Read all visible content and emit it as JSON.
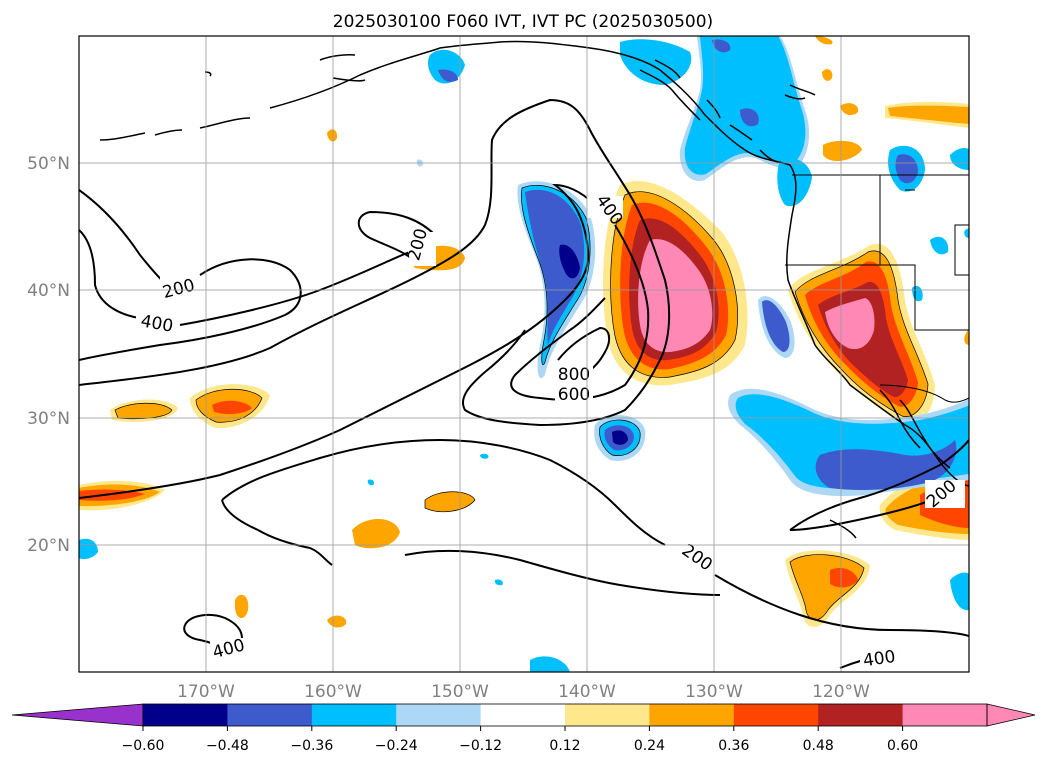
{
  "title": "2025030100 F060 IVT, IVT PC (2025030500)",
  "map": {
    "extent": {
      "lon_min": -180,
      "lon_max": -110,
      "lat_min": 10,
      "lat_max": 60
    },
    "lat_labels": [
      "50°N",
      "40°N",
      "30°N",
      "20°N"
    ],
    "lon_labels": [
      "170°W",
      "160°W",
      "150°W",
      "140°W",
      "130°W",
      "120°W"
    ],
    "gridlines": true,
    "contour_labels": [
      "400",
      "200",
      "200",
      "400",
      "800",
      "600",
      "200",
      "400",
      "200",
      "400"
    ]
  },
  "colorbar": {
    "ticks": [
      "−0.60",
      "−0.48",
      "−0.36",
      "−0.24",
      "−0.12",
      "0.12",
      "0.24",
      "0.36",
      "0.48",
      "0.60"
    ],
    "colors": [
      "#9932cc",
      "#00008b",
      "#3d5bcc",
      "#00bfff",
      "#add8f5",
      "#ffffff",
      "#ffe88c",
      "#ffa500",
      "#ff4500",
      "#b22222",
      "#ff88b4",
      "#ff88b4"
    ],
    "extend": "both"
  }
}
